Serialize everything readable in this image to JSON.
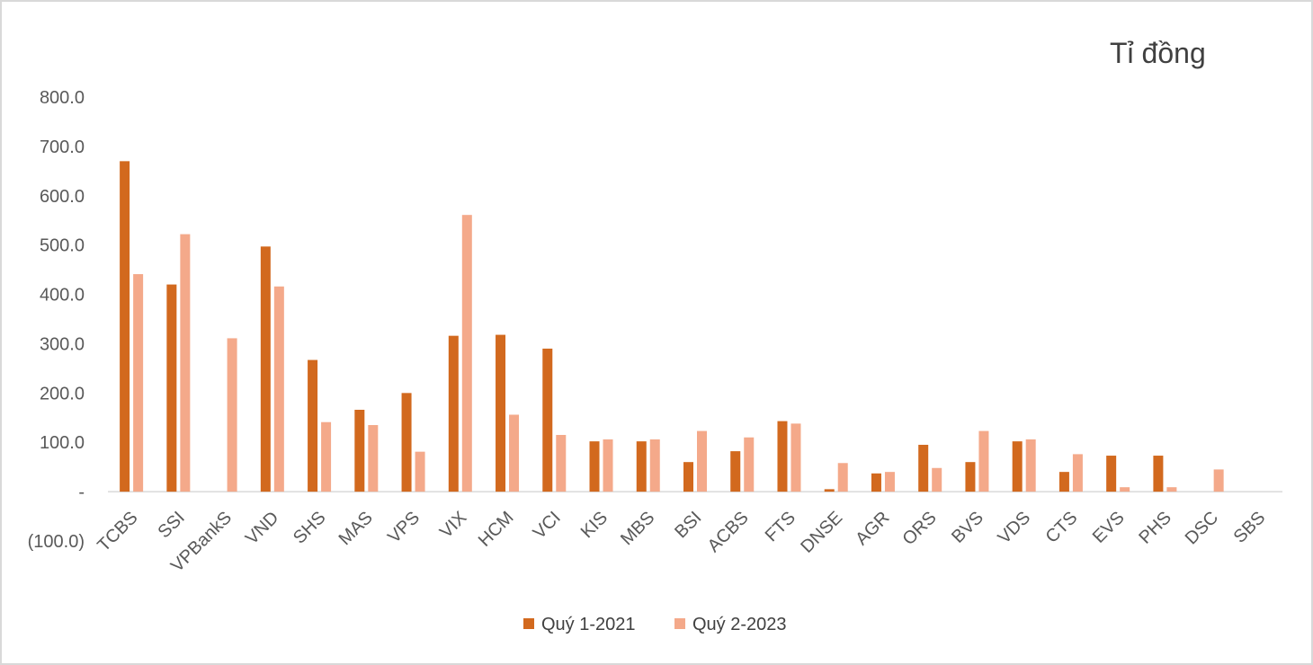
{
  "chart_data": {
    "type": "bar",
    "unit_label": "Tỉ đồng",
    "categories": [
      "TCBS",
      "SSI",
      "VPBankS",
      "VND",
      "SHS",
      "MAS",
      "VPS",
      "VIX",
      "HCM",
      "VCI",
      "KIS",
      "MBS",
      "BSI",
      "ACBS",
      "FTS",
      "DNSE",
      "AGR",
      "ORS",
      "BVS",
      "VDS",
      "CTS",
      "EVS",
      "PHS",
      "DSC",
      "SBS"
    ],
    "series": [
      {
        "name": "Quý 1-2021",
        "color": "#d2691e",
        "values": [
          670,
          420,
          0,
          497,
          267,
          166,
          200,
          316,
          318,
          290,
          102,
          102,
          60,
          82,
          143,
          5,
          37,
          95,
          60,
          102,
          40,
          73,
          73,
          0,
          0
        ]
      },
      {
        "name": "Quý 2-2023",
        "color": "#f4a98a",
        "values": [
          441,
          522,
          311,
          416,
          141,
          135,
          81,
          561,
          156,
          115,
          106,
          106,
          123,
          110,
          138,
          58,
          40,
          48,
          123,
          106,
          76,
          9,
          9,
          45,
          0
        ]
      }
    ],
    "yticks": [
      "800.0",
      "700.0",
      "600.0",
      "500.0",
      "400.0",
      "300.0",
      "200.0",
      "100.0",
      "-",
      "(100.0)"
    ],
    "ylim": [
      -100,
      800
    ],
    "grid": false,
    "legend": "bottom"
  }
}
